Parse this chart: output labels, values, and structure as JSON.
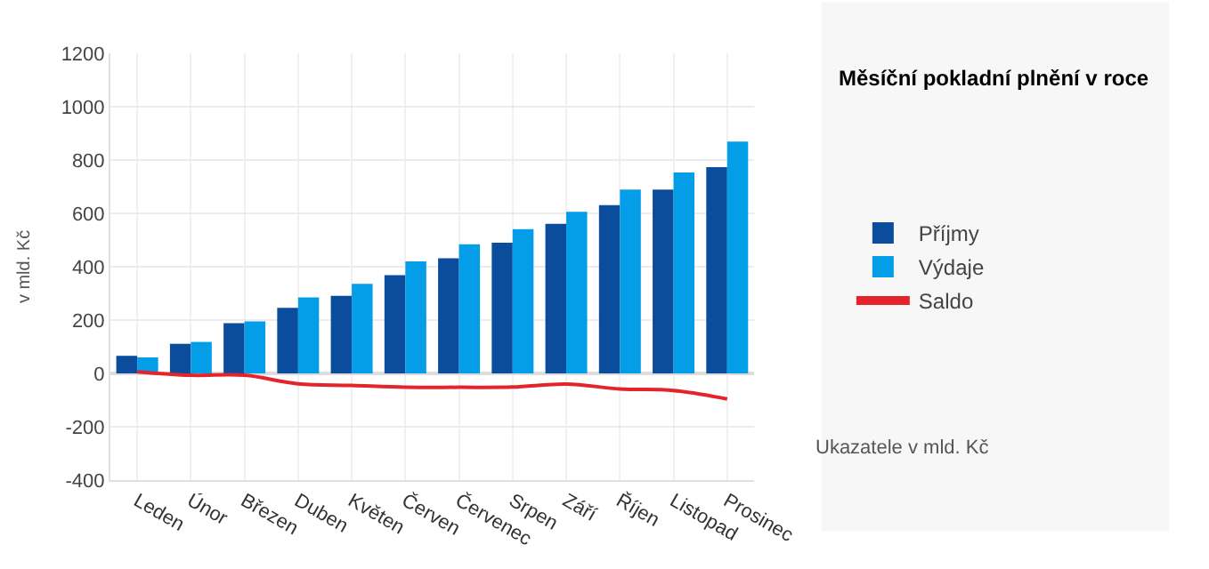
{
  "chart_data": {
    "type": "bar",
    "title": "Měsíční pokladní plnění v roce",
    "ylabel": "v mld. Kč",
    "categories": [
      "Leden",
      "Únor",
      "Březen",
      "Duben",
      "Květen",
      "Červen",
      "Červenec",
      "Srpen",
      "Září",
      "Říjen",
      "Listopad",
      "Prosinec"
    ],
    "series": [
      {
        "name": "Příjmy",
        "color": "#0b4c9c",
        "values": [
          66,
          111,
          188,
          246,
          291,
          368,
          432,
          490,
          561,
          631,
          689,
          773
        ]
      },
      {
        "name": "Výdaje",
        "color": "#049de8",
        "values": [
          60,
          118,
          195,
          285,
          336,
          420,
          484,
          541,
          606,
          689,
          753,
          869
        ]
      },
      {
        "name": "Saldo",
        "type": "line",
        "color": "#e3242b",
        "values": [
          6,
          -7,
          -7,
          -39,
          -45,
          -52,
          -52,
          -51,
          -40,
          -58,
          -64,
          -96
        ]
      }
    ],
    "ylim": [
      -400,
      1200
    ],
    "yticks": [
      -400,
      -200,
      0,
      200,
      400,
      600,
      800,
      1000,
      1200
    ],
    "grid": true,
    "legend": "right",
    "marker": "none",
    "annotations": [
      "Ukazatele v mld. Kč"
    ]
  }
}
